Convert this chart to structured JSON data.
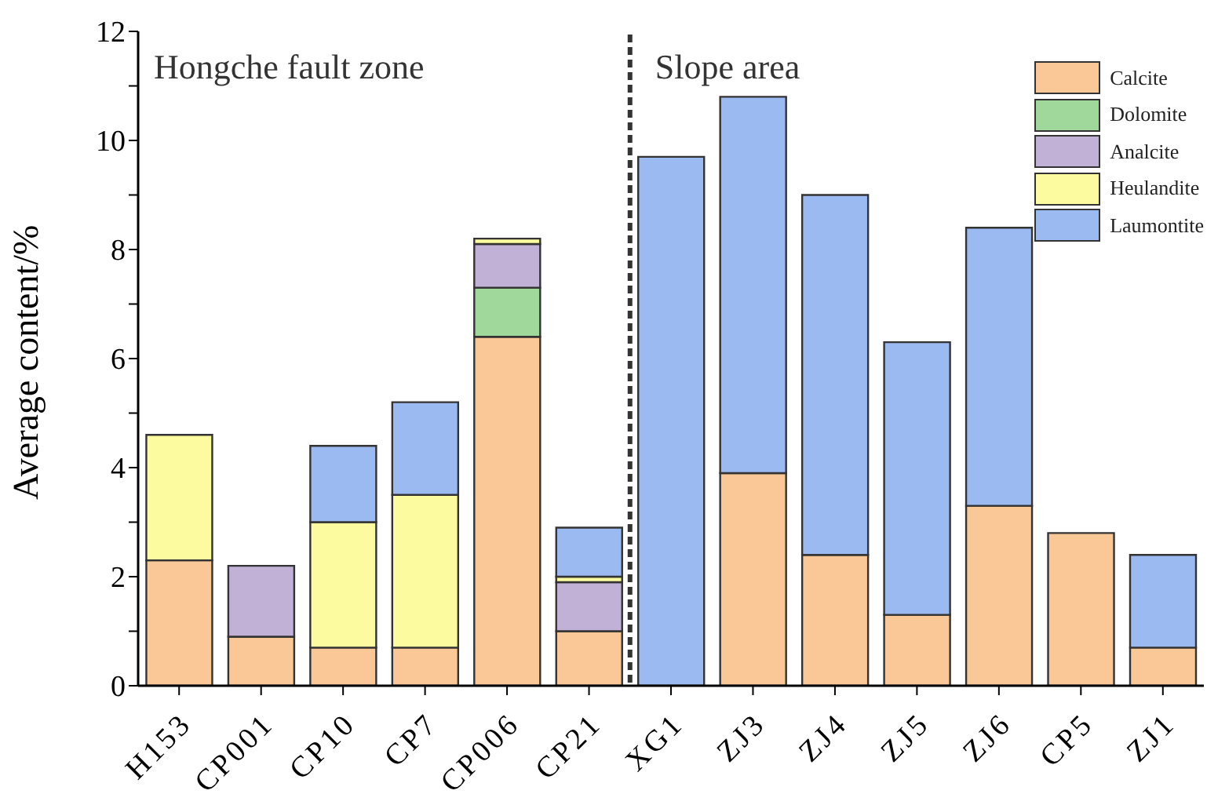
{
  "chart_data": {
    "type": "bar",
    "stacked": true,
    "ylabel": "Average content/%",
    "categories": [
      "H153",
      "CP001",
      "CP10",
      "CP7",
      "CP006",
      "CP21",
      "XG1",
      "ZJ3",
      "ZJ4",
      "ZJ5",
      "ZJ6",
      "CP5",
      "ZJ1"
    ],
    "series": [
      {
        "name": "Calcite",
        "color": "#f9c896",
        "values": [
          2.3,
          0.9,
          0.7,
          0.7,
          6.4,
          1.0,
          null,
          3.9,
          2.4,
          1.3,
          3.3,
          2.8,
          0.7
        ]
      },
      {
        "name": "Dolomite",
        "color": "#a0d89c",
        "values": [
          null,
          null,
          null,
          null,
          0.9,
          null,
          null,
          null,
          null,
          null,
          null,
          null,
          null
        ]
      },
      {
        "name": "Analcite",
        "color": "#c1b1d6",
        "values": [
          null,
          1.3,
          null,
          null,
          0.8,
          0.9,
          null,
          null,
          null,
          null,
          null,
          null,
          null
        ]
      },
      {
        "name": "Heulandite",
        "color": "#fdfb9f",
        "values": [
          2.3,
          null,
          2.3,
          2.8,
          0.1,
          0.1,
          null,
          null,
          null,
          null,
          null,
          null,
          null
        ]
      },
      {
        "name": "Laumontite",
        "color": "#9cbaf2",
        "values": [
          null,
          null,
          1.4,
          1.7,
          null,
          0.9,
          9.7,
          6.9,
          6.6,
          5.0,
          5.1,
          null,
          1.7
        ]
      }
    ],
    "annotations": [
      "Hongche fault zone",
      "Slope area"
    ],
    "ylim": [
      0,
      12
    ],
    "yticks": [
      0,
      {
        "value": 1,
        "label": null
      },
      2,
      {
        "value": 3,
        "label": null
      },
      4,
      {
        "value": 5,
        "label": null
      },
      6,
      {
        "value": 7,
        "label": null
      },
      8,
      {
        "value": 9,
        "label": null
      },
      10,
      {
        "value": 11,
        "label": null
      },
      12
    ],
    "grid": false,
    "legend": "top right"
  }
}
